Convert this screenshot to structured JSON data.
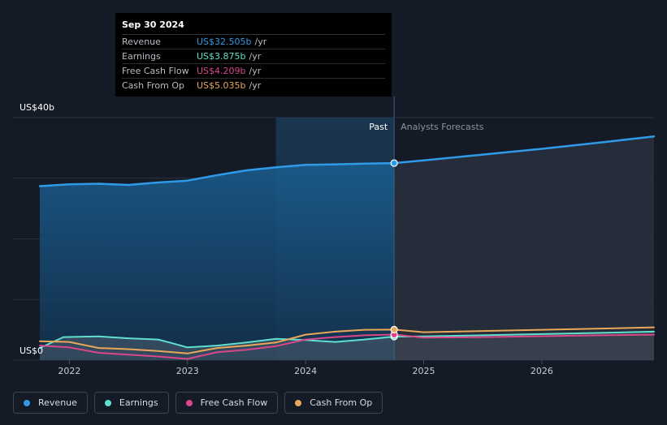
{
  "tooltip": {
    "date": "Sep 30 2024",
    "rows": [
      {
        "label": "Revenue",
        "value": "US$32.505b",
        "unit": "/yr",
        "color": "#2f9be8"
      },
      {
        "label": "Earnings",
        "value": "US$3.875b",
        "unit": "/yr",
        "color": "#5fe0cf"
      },
      {
        "label": "Free Cash Flow",
        "value": "US$4.209b",
        "unit": "/yr",
        "color": "#d9478a"
      },
      {
        "label": "Cash From Op",
        "value": "US$5.035b",
        "unit": "/yr",
        "color": "#e8a857"
      }
    ]
  },
  "chart_data": {
    "type": "area",
    "title": "",
    "y_label_top": "US$40b",
    "y_label_bottom": "US$0",
    "ylim": [
      0,
      40
    ],
    "xlim": [
      2021.75,
      2026.95
    ],
    "split_x": 2024.75,
    "highlight_start": 2023.75,
    "past_label": "Past",
    "forecast_label": "Analysts Forecasts",
    "x_ticks": [
      {
        "value": 2022,
        "label": "2022"
      },
      {
        "value": 2023,
        "label": "2023"
      },
      {
        "value": 2024,
        "label": "2024"
      },
      {
        "value": 2025,
        "label": "2025"
      },
      {
        "value": 2026,
        "label": "2026"
      }
    ],
    "series": [
      {
        "name": "Revenue",
        "color": "#2f9be8",
        "fill": true,
        "points": [
          [
            2021.75,
            28.7
          ],
          [
            2022.0,
            29.0
          ],
          [
            2022.25,
            29.1
          ],
          [
            2022.5,
            28.9
          ],
          [
            2022.75,
            29.3
          ],
          [
            2023.0,
            29.6
          ],
          [
            2023.25,
            30.5
          ],
          [
            2023.5,
            31.3
          ],
          [
            2023.75,
            31.8
          ],
          [
            2024.0,
            32.2
          ],
          [
            2024.25,
            32.3
          ],
          [
            2024.5,
            32.4
          ],
          [
            2024.75,
            32.5
          ],
          [
            2025.0,
            32.95
          ],
          [
            2025.5,
            33.9
          ],
          [
            2026.0,
            34.85
          ],
          [
            2026.5,
            35.9
          ],
          [
            2026.95,
            36.9
          ]
        ]
      },
      {
        "name": "Earnings",
        "color": "#5fe0cf",
        "fill": true,
        "points": [
          [
            2021.75,
            2.0
          ],
          [
            2021.95,
            3.8
          ],
          [
            2022.25,
            3.9
          ],
          [
            2022.5,
            3.6
          ],
          [
            2022.75,
            3.4
          ],
          [
            2022.85,
            2.9
          ],
          [
            2023.0,
            2.1
          ],
          [
            2023.25,
            2.4
          ],
          [
            2023.5,
            2.9
          ],
          [
            2023.75,
            3.5
          ],
          [
            2024.0,
            3.3
          ],
          [
            2024.25,
            3.0
          ],
          [
            2024.5,
            3.4
          ],
          [
            2024.75,
            3.875
          ],
          [
            2025.0,
            3.9
          ],
          [
            2025.5,
            4.1
          ],
          [
            2026.0,
            4.3
          ],
          [
            2026.5,
            4.5
          ],
          [
            2026.95,
            4.7
          ]
        ]
      },
      {
        "name": "Free Cash Flow",
        "color": "#d9478a",
        "fill": false,
        "points": [
          [
            2021.75,
            2.4
          ],
          [
            2022.0,
            2.1
          ],
          [
            2022.25,
            1.2
          ],
          [
            2022.5,
            0.9
          ],
          [
            2022.75,
            0.6
          ],
          [
            2023.0,
            0.2
          ],
          [
            2023.25,
            1.3
          ],
          [
            2023.5,
            1.7
          ],
          [
            2023.75,
            2.3
          ],
          [
            2024.0,
            3.4
          ],
          [
            2024.25,
            3.8
          ],
          [
            2024.5,
            4.1
          ],
          [
            2024.75,
            4.209
          ],
          [
            2025.0,
            3.7
          ],
          [
            2025.5,
            3.8
          ],
          [
            2026.0,
            3.95
          ],
          [
            2026.5,
            4.1
          ],
          [
            2026.95,
            4.2
          ]
        ]
      },
      {
        "name": "Cash From Op",
        "color": "#e8a857",
        "fill": false,
        "points": [
          [
            2021.75,
            3.1
          ],
          [
            2022.0,
            3.0
          ],
          [
            2022.25,
            2.0
          ],
          [
            2022.5,
            1.8
          ],
          [
            2022.75,
            1.5
          ],
          [
            2023.0,
            1.1
          ],
          [
            2023.25,
            2.0
          ],
          [
            2023.5,
            2.4
          ],
          [
            2023.75,
            2.9
          ],
          [
            2024.0,
            4.2
          ],
          [
            2024.25,
            4.7
          ],
          [
            2024.5,
            5.0
          ],
          [
            2024.75,
            5.035
          ],
          [
            2025.0,
            4.6
          ],
          [
            2025.5,
            4.8
          ],
          [
            2026.0,
            5.0
          ],
          [
            2026.5,
            5.2
          ],
          [
            2026.95,
            5.4
          ]
        ]
      }
    ]
  },
  "legend": [
    {
      "label": "Revenue",
      "color": "#2f9be8"
    },
    {
      "label": "Earnings",
      "color": "#5fe0cf"
    },
    {
      "label": "Free Cash Flow",
      "color": "#d9478a"
    },
    {
      "label": "Cash From Op",
      "color": "#e8a857"
    }
  ]
}
